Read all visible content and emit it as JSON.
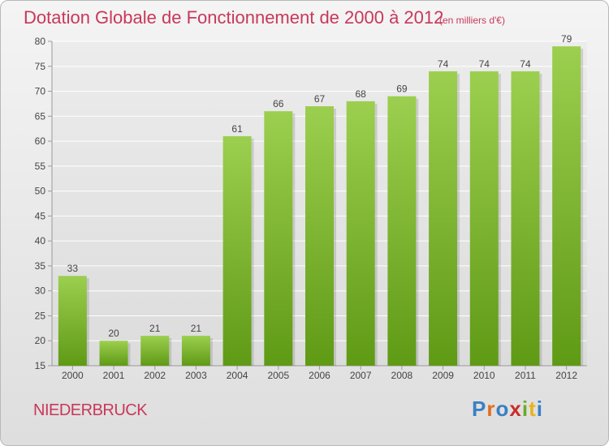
{
  "header": {
    "title": "Dotation Globale de Fonctionnement de 2000 à 2012",
    "subtitle": "(en milliers d'€)"
  },
  "footer": {
    "place": "NIEDERBRUCK",
    "logo": "Proxiti"
  },
  "colors": {
    "bar_top": "#9ccf4f",
    "bar_bottom": "#5f9a15",
    "title": "#c8385a",
    "grid": "#ffffff"
  },
  "chart_data": {
    "type": "bar",
    "categories": [
      "2000",
      "2001",
      "2002",
      "2003",
      "2004",
      "2005",
      "2006",
      "2007",
      "2008",
      "2009",
      "2010",
      "2011",
      "2012"
    ],
    "values": [
      33,
      20,
      21,
      21,
      61,
      66,
      67,
      68,
      69,
      74,
      74,
      74,
      79
    ],
    "data_labels": [
      "33",
      "20",
      "21",
      "21",
      "61",
      "66",
      "67",
      "68",
      "69",
      "74",
      "74",
      "74",
      "79"
    ],
    "ylim": [
      15,
      80
    ],
    "yticks": [
      15,
      20,
      25,
      30,
      35,
      40,
      45,
      50,
      55,
      60,
      65,
      70,
      75,
      80
    ],
    "grid": true,
    "title": "Dotation Globale de Fonctionnement de 2000 à 2012",
    "xlabel": "",
    "ylabel": ""
  }
}
